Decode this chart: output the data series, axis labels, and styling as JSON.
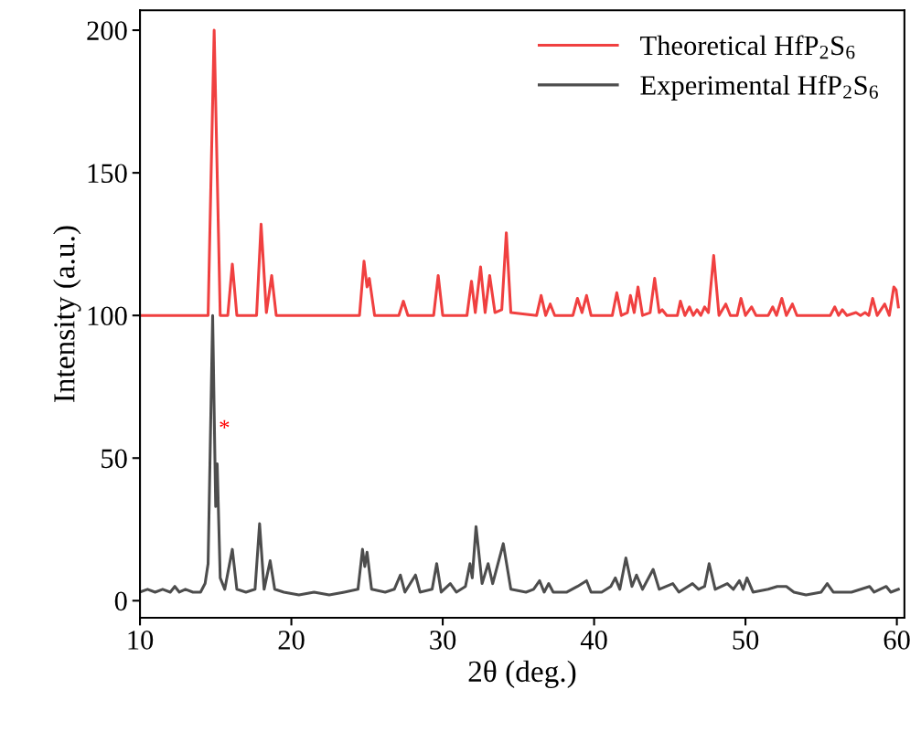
{
  "chart_data": {
    "type": "line",
    "xlabel": "2θ (deg.)",
    "ylabel": "Intensity (a.u.)",
    "xlim": [
      10,
      60.5
    ],
    "ylim": [
      -6,
      207
    ],
    "xticks": [
      10,
      20,
      30,
      40,
      50,
      60
    ],
    "yticks": [
      0,
      50,
      100,
      150,
      200
    ],
    "grid": false,
    "legend": "top right",
    "marker": "none",
    "line_style": "solid",
    "annotations": [
      {
        "text": "*",
        "x": 15.2,
        "y": 60
      }
    ],
    "series": [
      {
        "name": "Theoretical HfP$_{2}$S$_{6}$",
        "color": "#f04040",
        "x": [
          10,
          14.5,
          14.9,
          15.3,
          15.8,
          16.1,
          16.4,
          17.7,
          18.0,
          18.35,
          18.7,
          19.0,
          24.5,
          24.8,
          25.0,
          25.15,
          25.5,
          27.1,
          27.4,
          27.7,
          29.4,
          29.7,
          30.0,
          31.6,
          31.9,
          32.15,
          32.5,
          32.8,
          33.1,
          33.45,
          33.9,
          34.2,
          34.5,
          36.2,
          36.5,
          36.8,
          37.1,
          37.4,
          38.6,
          38.9,
          39.2,
          39.5,
          39.8,
          41.2,
          41.5,
          41.8,
          42.2,
          42.4,
          42.65,
          42.9,
          43.2,
          43.7,
          44.0,
          44.3,
          44.5,
          44.8,
          45.5,
          45.7,
          46.0,
          46.3,
          46.55,
          46.8,
          47.05,
          47.3,
          47.55,
          47.9,
          48.25,
          48.7,
          49.0,
          49.45,
          49.7,
          50.0,
          50.4,
          50.7,
          51.5,
          51.8,
          52.05,
          52.4,
          52.7,
          53.1,
          53.4,
          55.6,
          55.9,
          56.15,
          56.4,
          56.7,
          57.3,
          57.6,
          57.9,
          58.15,
          58.4,
          58.7,
          59.2,
          59.5,
          59.8,
          59.95,
          60.1
        ],
        "values": [
          100,
          100,
          200,
          100,
          100,
          118,
          100,
          100,
          132,
          101,
          114,
          100,
          100,
          119,
          110,
          113,
          100,
          100,
          105,
          100,
          100,
          114,
          100,
          100,
          112,
          101,
          117,
          101,
          114,
          101,
          102,
          129,
          101,
          100,
          107,
          100,
          104,
          100,
          100,
          106,
          101,
          107,
          100,
          100,
          108,
          100,
          101,
          107,
          101,
          110,
          100,
          101,
          113,
          101,
          102,
          100,
          100,
          105,
          100,
          103,
          100,
          102,
          100,
          103,
          101,
          121,
          100,
          104,
          100,
          100,
          106,
          100,
          103,
          100,
          100,
          103,
          100,
          106,
          100,
          104,
          100,
          100,
          103,
          100,
          102,
          100,
          101,
          100,
          101,
          100,
          106,
          100,
          104,
          100,
          110,
          109,
          103
        ]
      },
      {
        "name": "Experimental HfP$_{2}$S$_{6}$",
        "color": "#4d4d4d",
        "x": [
          10,
          10.5,
          11,
          11.5,
          12,
          12.3,
          12.6,
          13,
          13.5,
          14,
          14.3,
          14.5,
          14.8,
          15.0,
          15.1,
          15.3,
          15.6,
          16.1,
          16.4,
          17.0,
          17.6,
          17.9,
          18.2,
          18.6,
          18.9,
          19.5,
          20.5,
          21.5,
          22.5,
          23.5,
          24.4,
          24.7,
          24.85,
          25.0,
          25.3,
          26.2,
          26.8,
          27.2,
          27.5,
          28.2,
          28.5,
          29.3,
          29.6,
          29.9,
          30.5,
          30.9,
          31.5,
          31.8,
          31.95,
          32.2,
          32.6,
          33.0,
          33.3,
          34.0,
          34.5,
          35.5,
          36.0,
          36.4,
          36.7,
          37.0,
          37.3,
          38.2,
          38.9,
          39.5,
          39.8,
          40.5,
          41.1,
          41.4,
          41.7,
          42.1,
          42.5,
          42.8,
          43.2,
          43.9,
          44.3,
          45.2,
          45.6,
          46.2,
          46.5,
          46.9,
          47.3,
          47.6,
          48.0,
          48.8,
          49.2,
          49.6,
          49.85,
          50.1,
          50.5,
          51.5,
          52.1,
          52.7,
          53.2,
          54,
          55,
          55.4,
          55.8,
          56.5,
          57,
          58.2,
          58.5,
          59.3,
          59.6,
          60.1
        ],
        "values": [
          3,
          4,
          3,
          4,
          3,
          5,
          3,
          4,
          3,
          3,
          6,
          13,
          100,
          33,
          48,
          8,
          4,
          18,
          4,
          3,
          4,
          27,
          4,
          14,
          4,
          3,
          2,
          3,
          2,
          3,
          4,
          18,
          12,
          17,
          4,
          3,
          4,
          9,
          3,
          9,
          3,
          4,
          13,
          3,
          6,
          3,
          5,
          13,
          8,
          26,
          6,
          13,
          6,
          20,
          4,
          3,
          4,
          7,
          3,
          6,
          3,
          3,
          5,
          7,
          3,
          3,
          5,
          8,
          4,
          15,
          5,
          9,
          4,
          11,
          4,
          6,
          3,
          5,
          6,
          4,
          5,
          13,
          4,
          6,
          4,
          7,
          4,
          8,
          3,
          4,
          5,
          5,
          3,
          2,
          3,
          6,
          3,
          3,
          3,
          5,
          3,
          5,
          3,
          4
        ]
      }
    ]
  }
}
